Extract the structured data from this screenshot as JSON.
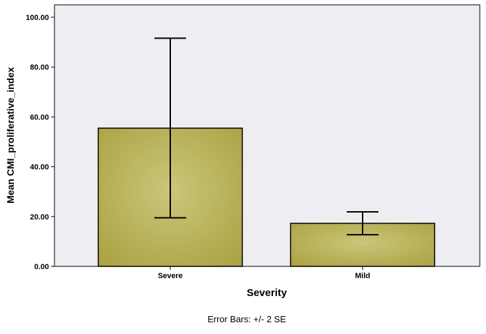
{
  "chart_data": {
    "type": "bar",
    "categories": [
      "Severe",
      "Mild"
    ],
    "values": [
      55.5,
      17.3
    ],
    "error_bars": [
      {
        "category": "Severe",
        "low": 19.5,
        "high": 91.6
      },
      {
        "category": "Mild",
        "low": 12.7,
        "high": 21.9
      }
    ],
    "xlabel": "Severity",
    "ylabel": "Mean CMI_proliferative_index",
    "ylim": [
      0,
      100
    ],
    "yticks": [
      0,
      20,
      40,
      60,
      80,
      100
    ],
    "ytick_labels": [
      "0.00",
      "20.00",
      "40.00",
      "60.00",
      "80.00",
      "100.00"
    ],
    "grid": false,
    "footnote": "Error Bars: +/- 2 SE",
    "colors": {
      "bar_fill_center": "#cbc67a",
      "bar_fill_edge": "#a9a040",
      "bar_stroke": "#000000",
      "plot_background": "#eeeef2"
    }
  }
}
